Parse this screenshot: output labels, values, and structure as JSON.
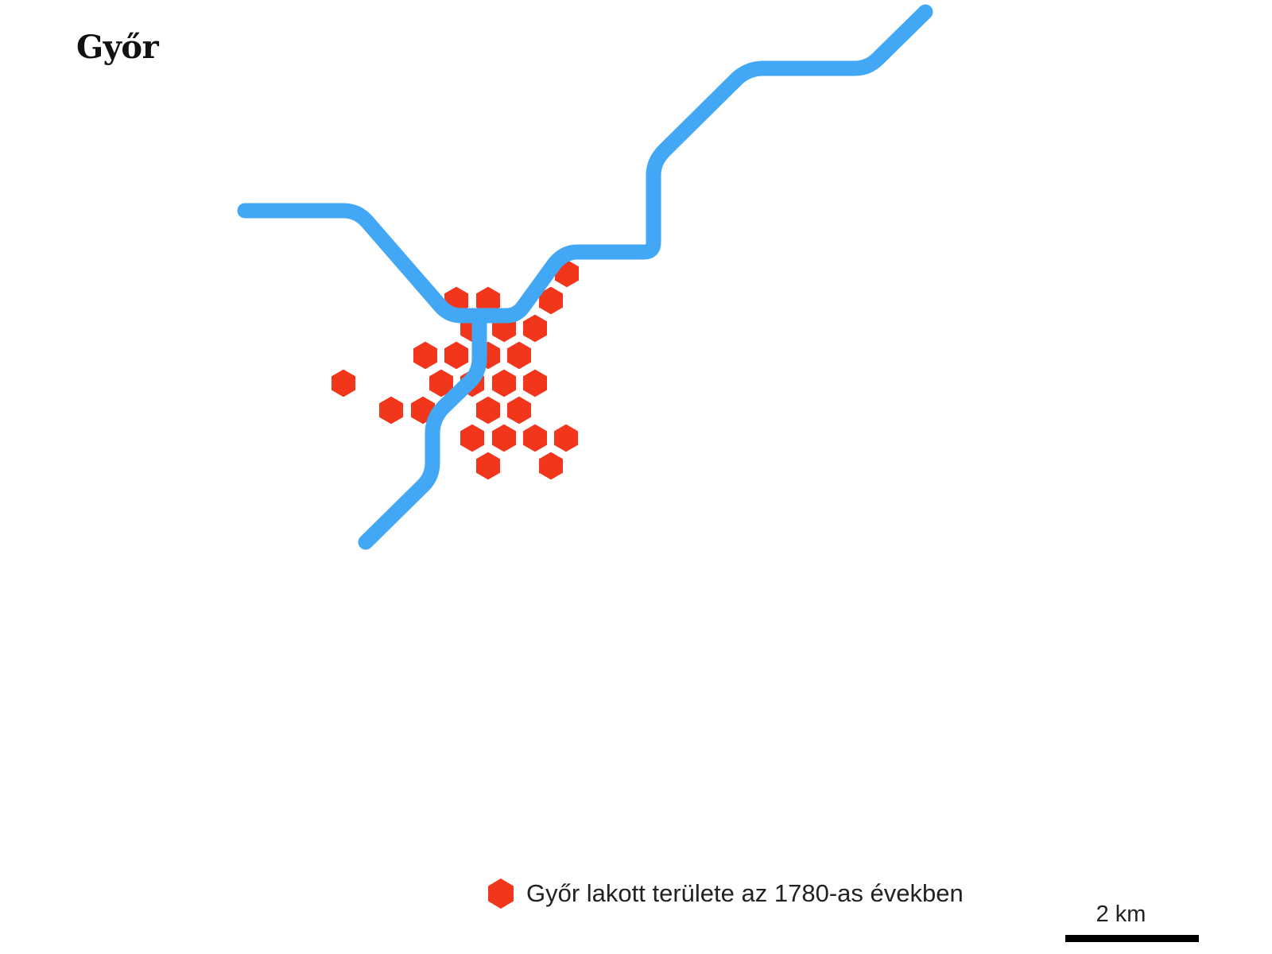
{
  "map": {
    "title": "Győr",
    "colors": {
      "river": "#42a8f5",
      "settlement": "#f2361c",
      "background": "#ffffff"
    },
    "legend": {
      "label": "Győr lakott területe az 1780-as években",
      "icon": "hexagon-icon"
    },
    "scale": {
      "label": "2 km"
    }
  }
}
